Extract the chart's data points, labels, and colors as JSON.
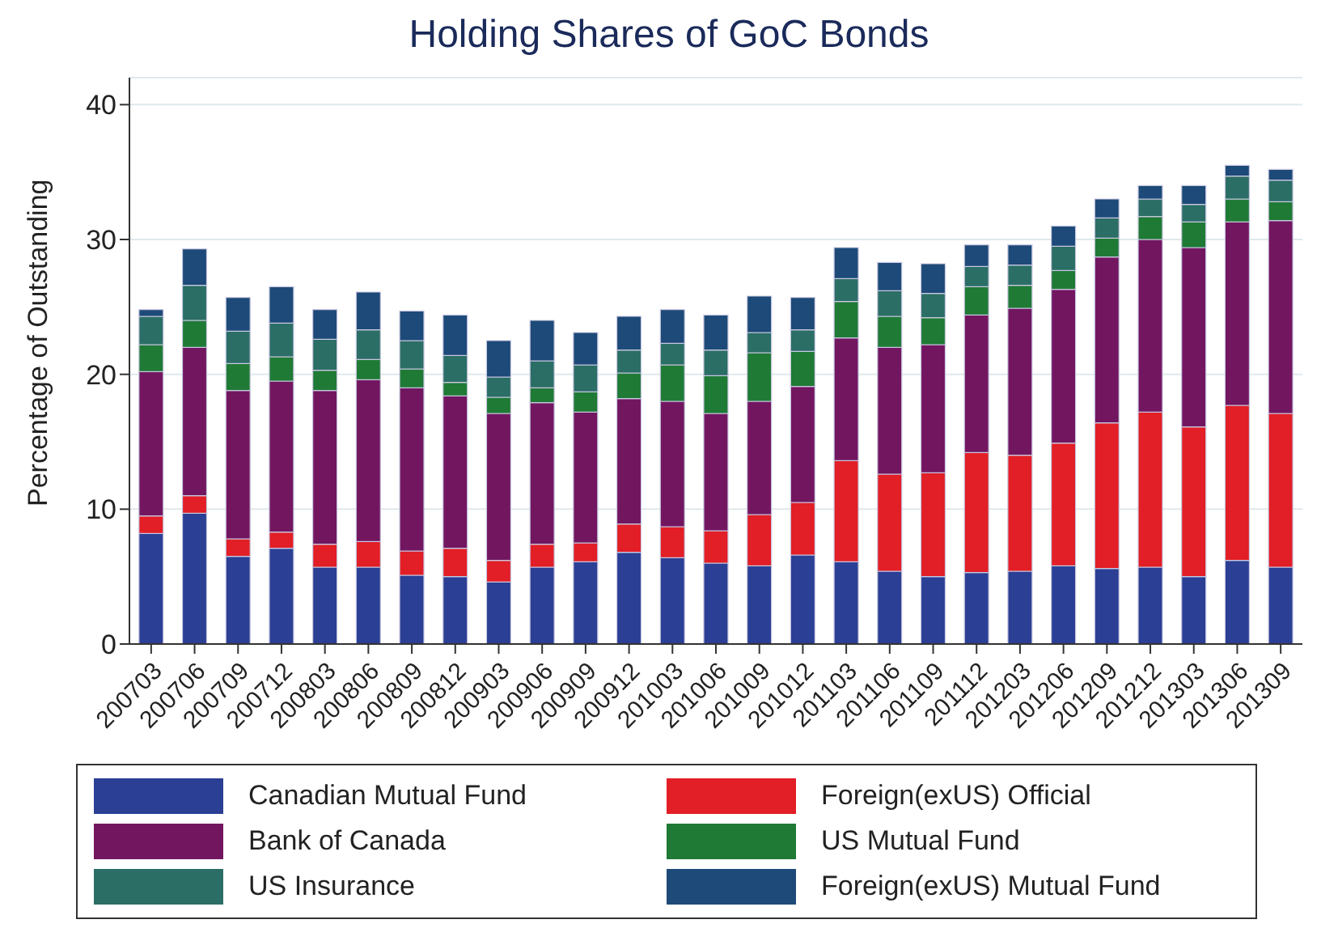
{
  "chart_data": {
    "type": "bar",
    "title": "Holding Shares of GoC Bonds",
    "ylabel": "Percentage of Outstanding",
    "stacked": true,
    "categories": [
      "200703",
      "200706",
      "200709",
      "200712",
      "200803",
      "200806",
      "200809",
      "200812",
      "200903",
      "200906",
      "200909",
      "200912",
      "201003",
      "201006",
      "201009",
      "201012",
      "201103",
      "201106",
      "201109",
      "201112",
      "201203",
      "201206",
      "201209",
      "201212",
      "201303",
      "201306",
      "201309"
    ],
    "series": [
      {
        "name": "Canadian Mutual Fund",
        "color": "#2b3f94",
        "values": [
          8.2,
          9.7,
          6.5,
          7.1,
          5.7,
          5.7,
          5.1,
          5.0,
          4.6,
          5.7,
          6.1,
          6.8,
          6.4,
          6.0,
          5.8,
          6.6,
          6.1,
          5.4,
          5.0,
          5.3,
          5.4,
          5.8,
          5.6,
          5.7,
          5.0,
          6.2,
          5.7
        ]
      },
      {
        "name": "Foreign(exUS) Official",
        "color": "#e21e26",
        "values": [
          1.3,
          1.3,
          1.3,
          1.2,
          1.7,
          1.9,
          1.8,
          2.1,
          1.6,
          1.7,
          1.4,
          2.1,
          2.3,
          2.4,
          3.8,
          3.9,
          7.5,
          7.2,
          7.7,
          8.9,
          8.6,
          9.1,
          10.8,
          11.5,
          11.1,
          11.5,
          11.4
        ]
      },
      {
        "name": "Bank of Canada",
        "color": "#731660",
        "values": [
          10.7,
          11.0,
          11.0,
          11.2,
          11.4,
          12.0,
          12.1,
          11.3,
          10.9,
          10.5,
          9.7,
          9.3,
          9.3,
          8.7,
          8.4,
          8.6,
          9.1,
          9.4,
          9.5,
          10.2,
          10.9,
          11.4,
          12.3,
          12.8,
          13.3,
          13.6,
          14.3
        ]
      },
      {
        "name": "US Mutual Fund",
        "color": "#1f7a35",
        "values": [
          2.0,
          2.0,
          2.0,
          1.8,
          1.5,
          1.5,
          1.4,
          1.0,
          1.2,
          1.1,
          1.5,
          1.9,
          2.7,
          2.8,
          3.6,
          2.6,
          2.7,
          2.3,
          2.0,
          2.1,
          1.7,
          1.4,
          1.4,
          1.7,
          1.9,
          1.7,
          1.4
        ]
      },
      {
        "name": "US Insurance",
        "color": "#2b6e66",
        "values": [
          2.1,
          2.6,
          2.4,
          2.5,
          2.3,
          2.2,
          2.1,
          2.0,
          1.5,
          2.0,
          2.0,
          1.7,
          1.6,
          1.9,
          1.5,
          1.6,
          1.7,
          1.9,
          1.8,
          1.5,
          1.5,
          1.8,
          1.5,
          1.3,
          1.3,
          1.7,
          1.6
        ]
      },
      {
        "name": "Foreign(exUS) Mutual Fund",
        "color": "#1d4a78",
        "values": [
          0.5,
          2.7,
          2.5,
          2.7,
          2.2,
          2.8,
          2.2,
          3.0,
          2.7,
          3.0,
          2.4,
          2.5,
          2.5,
          2.6,
          2.7,
          2.4,
          2.3,
          2.1,
          2.2,
          1.6,
          1.5,
          1.5,
          1.4,
          1.0,
          1.4,
          0.8,
          0.8
        ]
      }
    ],
    "ylim": [
      0,
      42
    ],
    "yticks": [
      0,
      10,
      20,
      30,
      40
    ],
    "grid": "y",
    "legend": "bottom"
  }
}
